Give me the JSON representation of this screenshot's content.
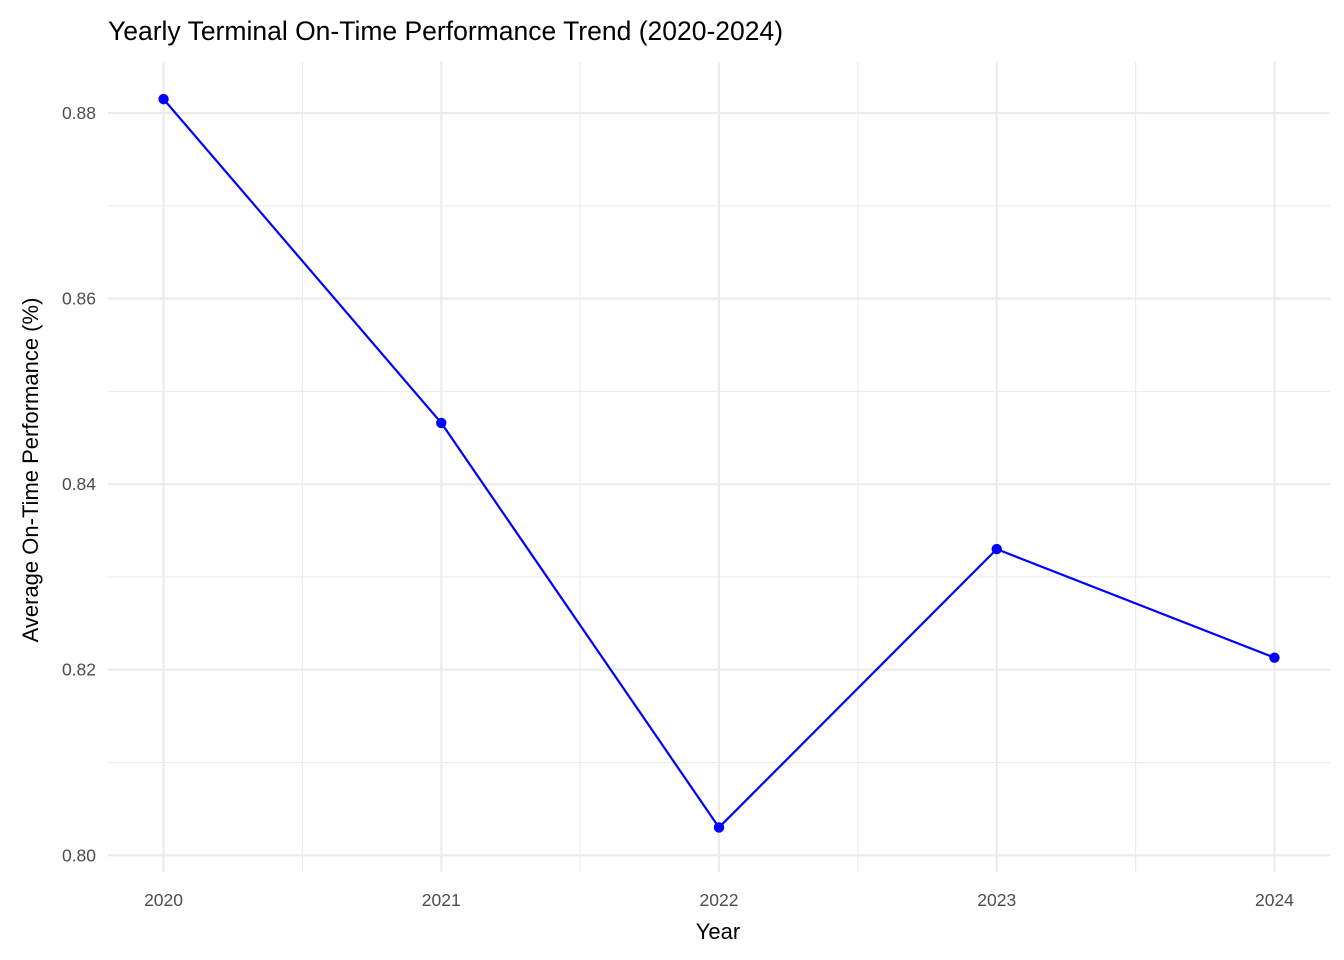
{
  "chart_data": {
    "type": "line",
    "title": "Yearly Terminal On-Time Performance Trend (2020-2024)",
    "xlabel": "Year",
    "ylabel": "Average On-Time Performance (%)",
    "x": [
      2020,
      2021,
      2022,
      2023,
      2024
    ],
    "x_tick_labels": [
      "2020",
      "2021",
      "2022",
      "2023",
      "2024"
    ],
    "series": [
      {
        "values": [
          0.8815,
          0.8466,
          0.803,
          0.833,
          0.8213
        ],
        "color": "#0000ff"
      }
    ],
    "y_ticks": [
      0.8,
      0.82,
      0.84,
      0.86,
      0.88
    ],
    "y_tick_labels": [
      "0.80",
      "0.82",
      "0.84",
      "0.86",
      "0.88"
    ],
    "ylim": [
      0.7982,
      0.8855
    ],
    "xlim": [
      2019.8,
      2024.2
    ],
    "grid": true,
    "legend": "none",
    "marker": "filled-circle",
    "background": "#ffffff",
    "grid_color": "#ebebeb"
  }
}
